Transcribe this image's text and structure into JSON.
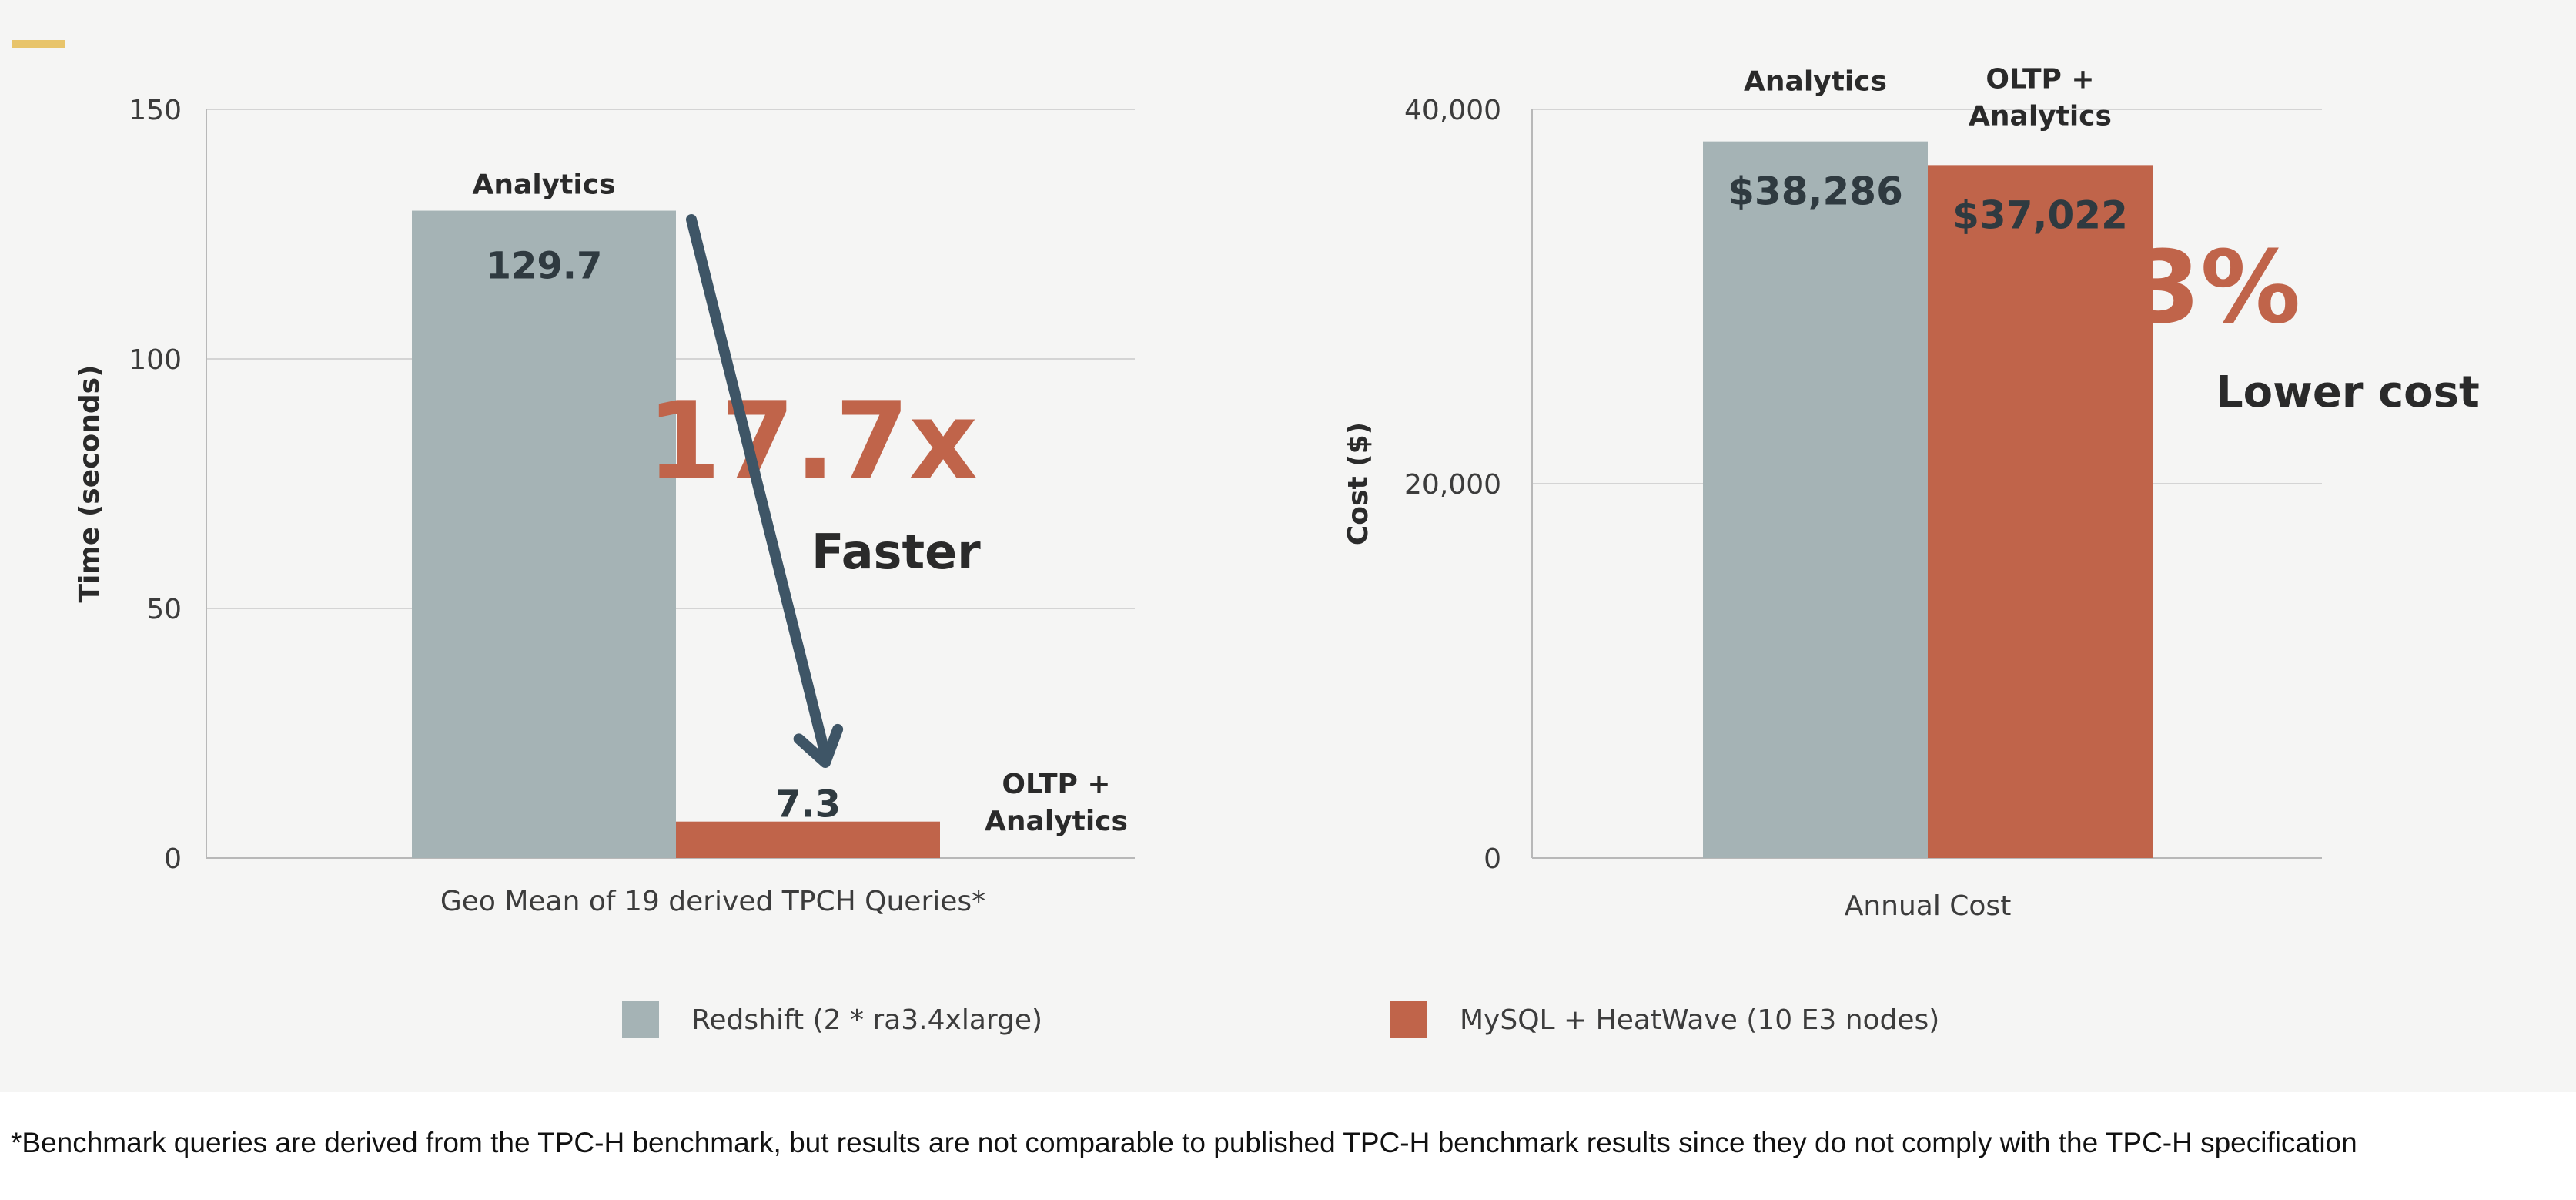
{
  "colors": {
    "redshift": "#a5b3b5",
    "heatwave": "#c0644a",
    "highlight": "#c0644a",
    "arrow": "#3e5566",
    "axis_text": "#3c3c3c",
    "bar_label_dark": "#2f3a40",
    "gridline": "#d4d4d4"
  },
  "legend": {
    "items": [
      {
        "label": "Redshift (2 * ra3.4xlarge)",
        "color": "#a5b3b5"
      },
      {
        "label": "MySQL + HeatWave (10 E3 nodes)",
        "color": "#c0644a"
      }
    ]
  },
  "footnote": "*Benchmark queries are derived from the TPC-H benchmark, but results are not comparable to published TPC-H benchmark results since they do not comply with the TPC-H specification",
  "chart_data": [
    {
      "type": "bar",
      "categories": [
        "Geo Mean of 19 derived TPCH Queries*"
      ],
      "series": [
        {
          "name": "Redshift (2 * ra3.4xlarge)",
          "values": [
            129.7
          ],
          "value_labels": [
            "129.7"
          ],
          "bar_title": "Analytics"
        },
        {
          "name": "MySQL + HeatWave (10 E3 nodes)",
          "values": [
            7.3
          ],
          "value_labels": [
            "7.3"
          ],
          "bar_title": "OLTP +\nAnalytics"
        }
      ],
      "xlabel": "Geo Mean of 19 derived TPCH Queries*",
      "ylabel": "Time (seconds)",
      "ylim": [
        0,
        150
      ],
      "yticks": [
        0,
        50,
        100,
        150
      ],
      "ytick_labels": [
        "0",
        "50",
        "100",
        "150"
      ],
      "grid": true,
      "legend": "bottom",
      "annotation": {
        "value": "17.7x",
        "text": "Faster"
      }
    },
    {
      "type": "bar",
      "categories": [
        "Annual Cost"
      ],
      "series": [
        {
          "name": "Redshift (2 * ra3.4xlarge)",
          "values": [
            38286
          ],
          "value_labels": [
            "$38,286"
          ],
          "bar_title": "Analytics"
        },
        {
          "name": "MySQL + HeatWave (10 E3 nodes)",
          "values": [
            37022
          ],
          "value_labels": [
            "$37,022"
          ],
          "bar_title": "OLTP +\nAnalytics"
        }
      ],
      "xlabel": "Annual Cost",
      "ylabel": "Cost ($)",
      "ylim": [
        0,
        40000
      ],
      "yticks": [
        0,
        20000,
        40000
      ],
      "ytick_labels": [
        "0",
        "20,000",
        "40,000"
      ],
      "grid": true,
      "legend": "bottom",
      "annotation": {
        "value": "3%",
        "text": "Lower cost"
      }
    }
  ]
}
